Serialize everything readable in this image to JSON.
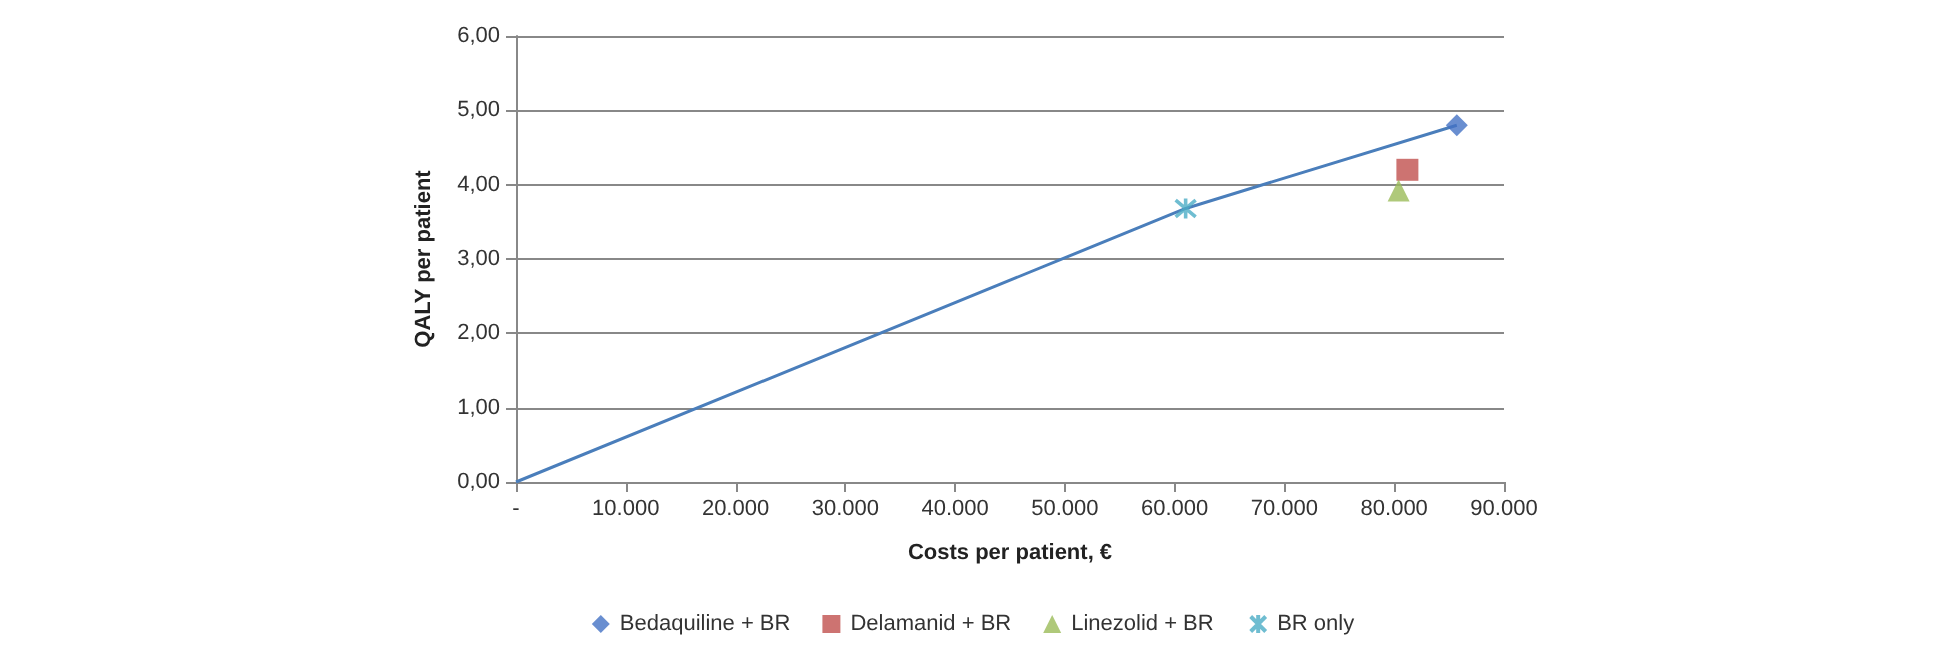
{
  "chart_data": {
    "type": "scatter",
    "xlabel": "Costs per patient, €",
    "ylabel": "QALY per patient",
    "series": [
      {
        "name": "Bedaquiline + BR",
        "color": "#4472c4",
        "marker": "diamond",
        "x": [
          85700
        ],
        "values": [
          4.8
        ]
      },
      {
        "name": "Delamanid + BR",
        "color": "#c0504d",
        "marker": "square",
        "x": [
          81200
        ],
        "values": [
          4.2
        ]
      },
      {
        "name": "Linezolid + BR",
        "color": "#9bbb59",
        "marker": "triangle",
        "x": [
          80400
        ],
        "values": [
          3.92
        ]
      },
      {
        "name": "BR only",
        "color": "#4bacc6",
        "marker": "cross",
        "x": [
          61000
        ],
        "values": [
          3.68
        ]
      },
      {
        "type": "line",
        "color": "#4a7ebb",
        "marker": "none",
        "x": [
          0,
          61000,
          85700
        ],
        "values": [
          0,
          3.68,
          4.8
        ]
      }
    ],
    "xlim": [
      0,
      90000
    ],
    "xticks": [
      {
        "value": 0,
        "label": "-"
      },
      {
        "value": 10000,
        "label": "10.000"
      },
      {
        "value": 20000,
        "label": "20.000"
      },
      {
        "value": 30000,
        "label": "30.000"
      },
      {
        "value": 40000,
        "label": "40.000"
      },
      {
        "value": 50000,
        "label": "50.000"
      },
      {
        "value": 60000,
        "label": "60.000"
      },
      {
        "value": 70000,
        "label": "70.000"
      },
      {
        "value": 80000,
        "label": "80.000"
      },
      {
        "value": 90000,
        "label": "90.000"
      }
    ],
    "ylim": [
      0,
      6
    ],
    "yticks": [
      {
        "value": 0,
        "label": "0,00"
      },
      {
        "value": 1,
        "label": "1,00"
      },
      {
        "value": 2,
        "label": "2,00"
      },
      {
        "value": 3,
        "label": "3,00"
      },
      {
        "value": 4,
        "label": "4,00"
      },
      {
        "value": 5,
        "label": "5,00"
      },
      {
        "value": 6,
        "label": "6,00"
      }
    ],
    "grid": "y",
    "legend": "bottom"
  }
}
